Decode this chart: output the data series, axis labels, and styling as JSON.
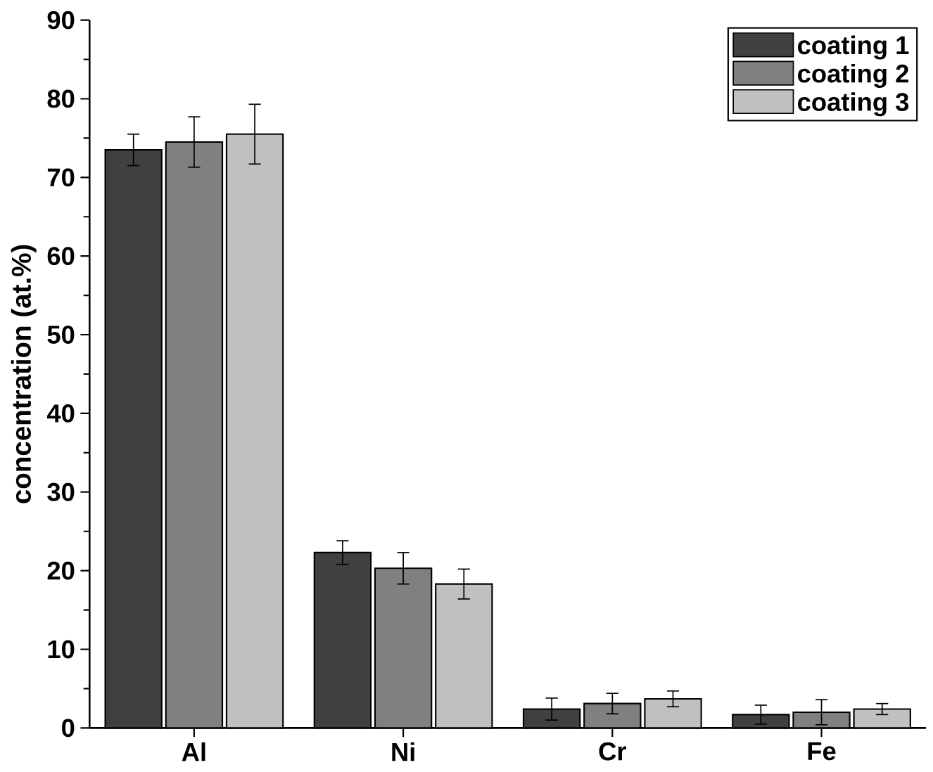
{
  "chart_data": {
    "type": "bar",
    "ylabel": "concentration (at.%)",
    "categories": [
      "Al",
      "Ni",
      "Cr",
      "Fe"
    ],
    "series": [
      {
        "name": "coating 1",
        "color": "#404040",
        "values": [
          73.5,
          22.3,
          2.4,
          1.7
        ],
        "errors": [
          2.0,
          1.5,
          1.4,
          1.2
        ]
      },
      {
        "name": "coating 2",
        "color": "#808080",
        "values": [
          74.5,
          20.3,
          3.1,
          2.0
        ],
        "errors": [
          3.2,
          2.0,
          1.3,
          1.6
        ]
      },
      {
        "name": "coating 3",
        "color": "#c0c0c0",
        "values": [
          75.5,
          18.3,
          3.7,
          2.4
        ],
        "errors": [
          3.8,
          1.9,
          1.0,
          0.7
        ]
      }
    ],
    "ylim": [
      0,
      90
    ],
    "yticks": [
      0,
      10,
      20,
      30,
      40,
      50,
      60,
      70,
      80,
      90
    ],
    "grid": false,
    "legend": "top right"
  }
}
